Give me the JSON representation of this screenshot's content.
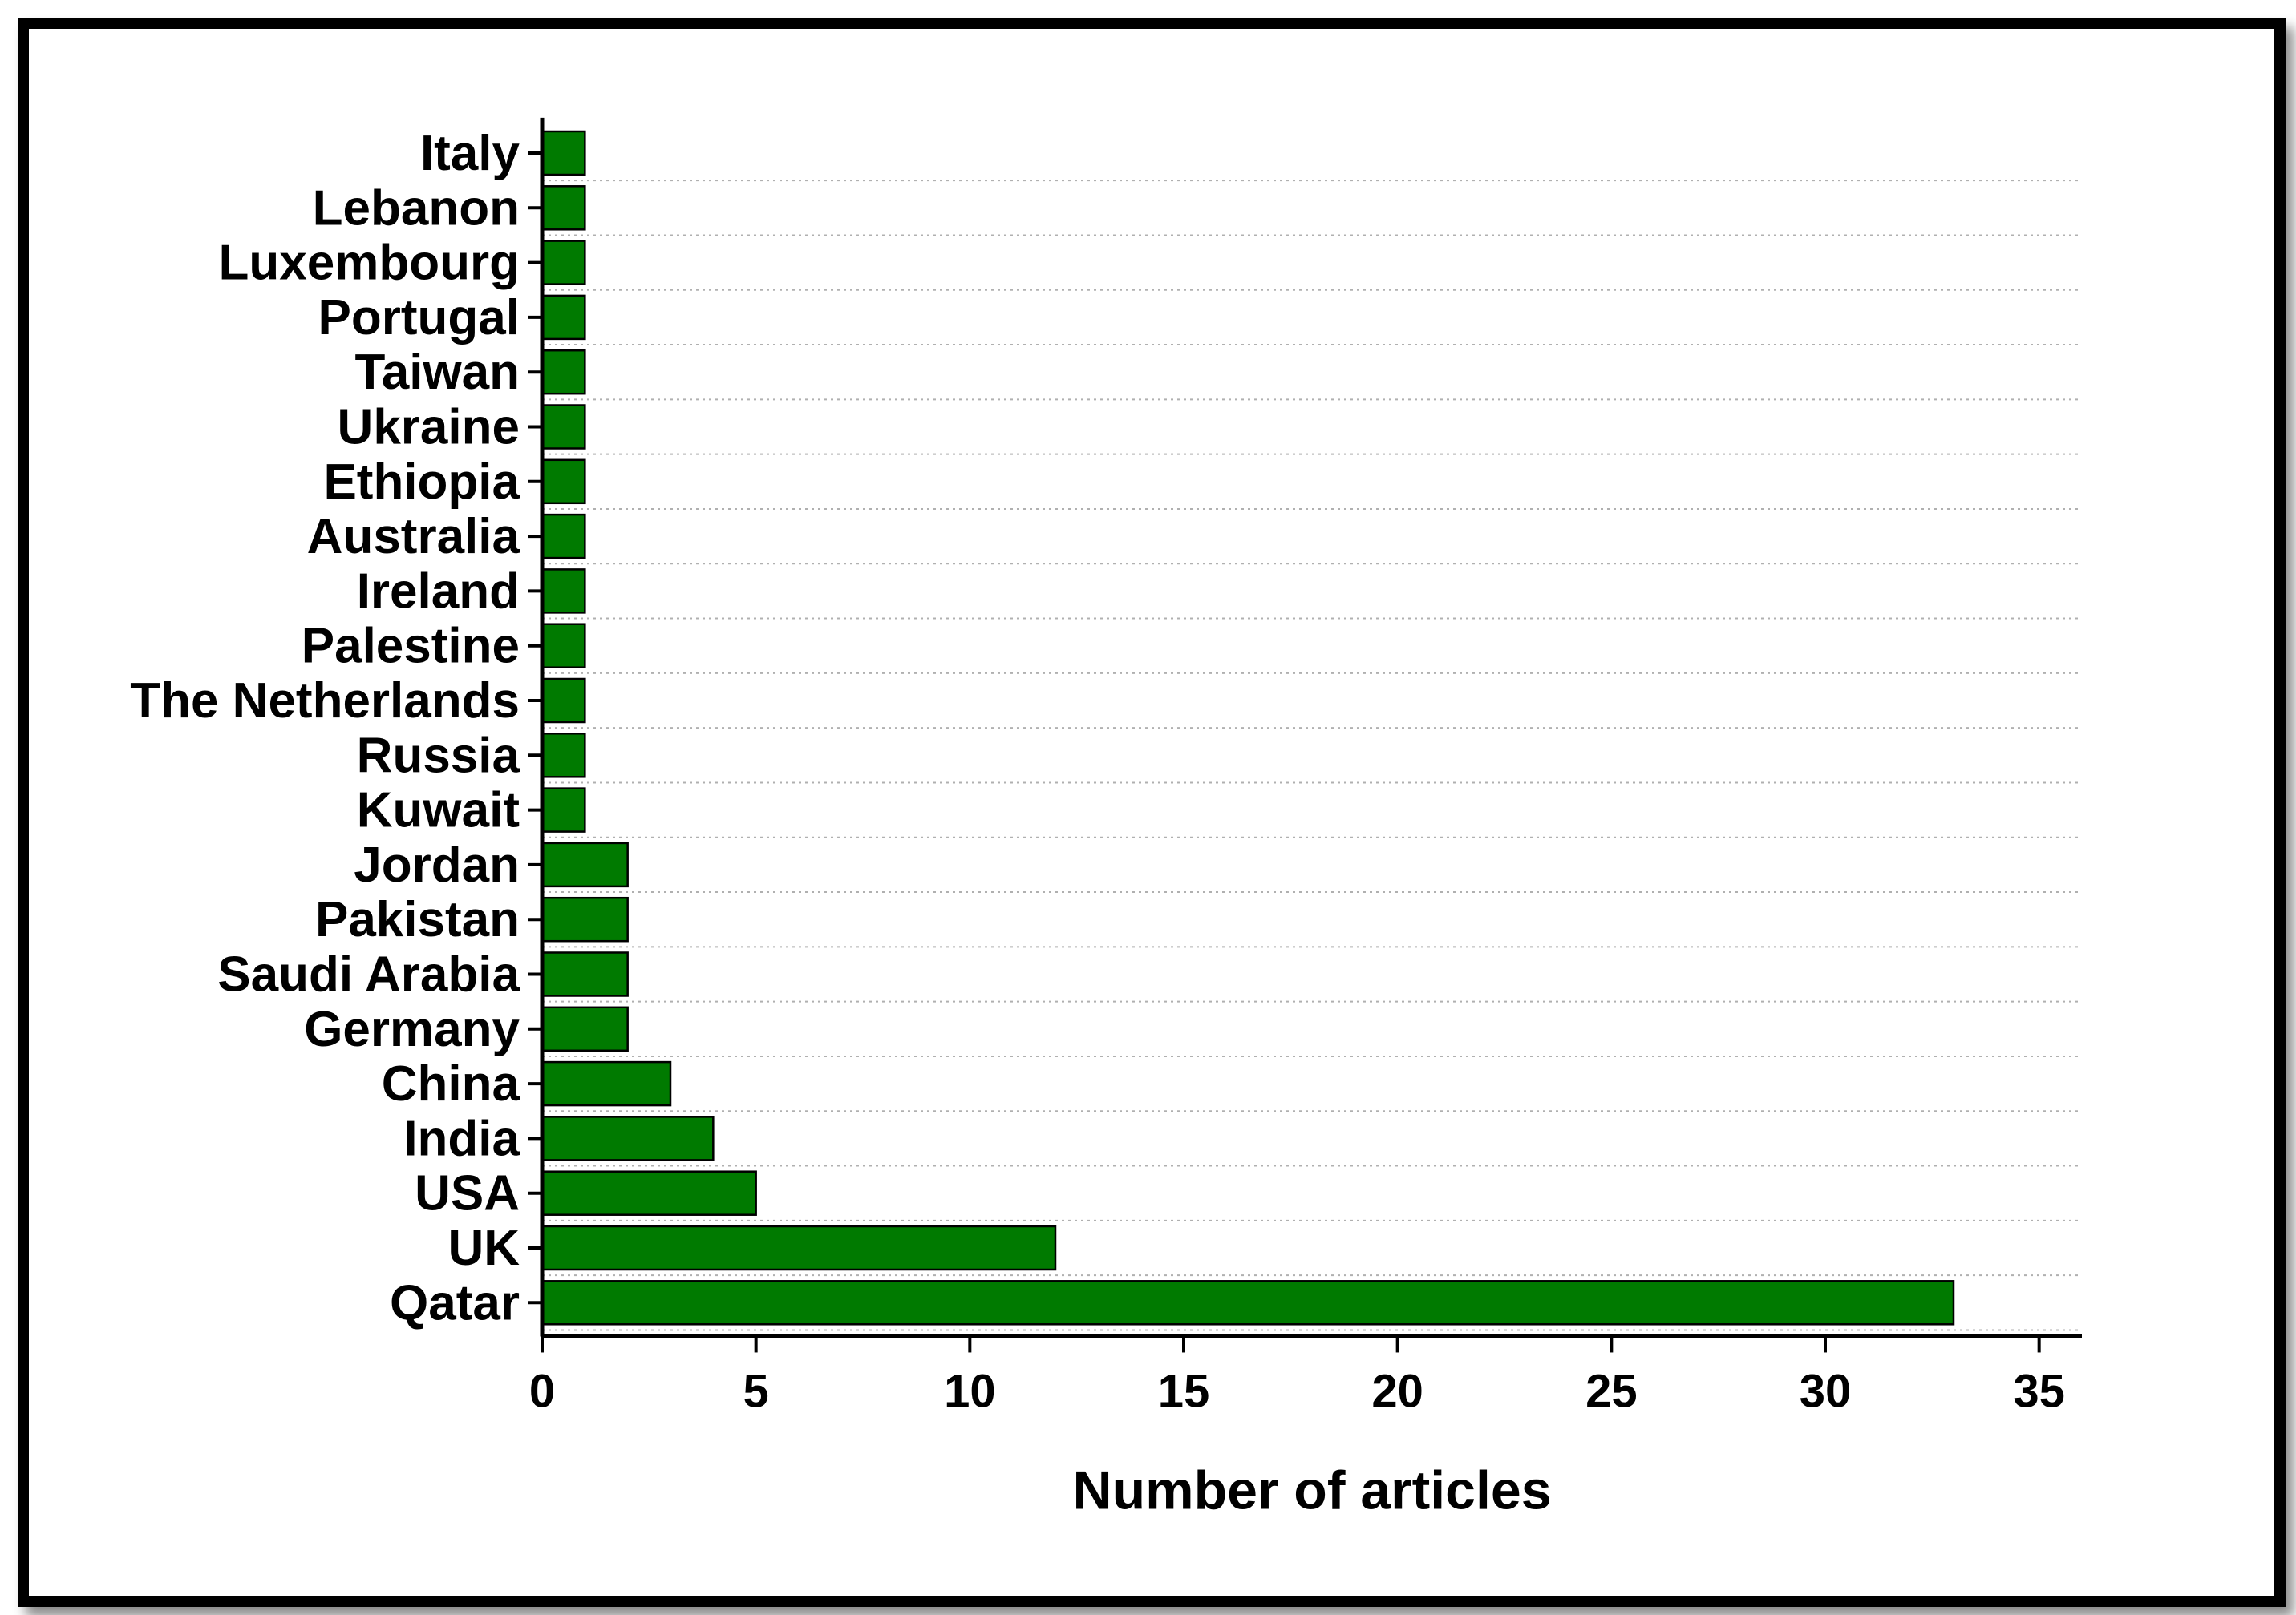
{
  "chart_data": {
    "type": "bar",
    "orientation": "horizontal",
    "title": "",
    "xlabel": "Number of articles",
    "ylabel": "",
    "xlim": [
      0,
      36
    ],
    "xticks": [
      0,
      5,
      10,
      15,
      20,
      25,
      30,
      35
    ],
    "grid": "horizontal dotted",
    "legend": "none",
    "bar_color": "#007a00",
    "categories": [
      "Italy",
      "Lebanon",
      "Luxembourg",
      "Portugal",
      "Taiwan",
      "Ukraine",
      "Ethiopia",
      "Australia",
      "Ireland",
      "Palestine",
      "The Netherlands",
      "Russia",
      "Kuwait",
      "Jordan",
      "Pakistan",
      "Saudi Arabia",
      "Germany",
      "China",
      "India",
      "USA",
      "UK",
      "Qatar"
    ],
    "values": [
      1,
      1,
      1,
      1,
      1,
      1,
      1,
      1,
      1,
      1,
      1,
      1,
      1,
      2,
      2,
      2,
      2,
      3,
      4,
      5,
      12,
      33
    ]
  }
}
